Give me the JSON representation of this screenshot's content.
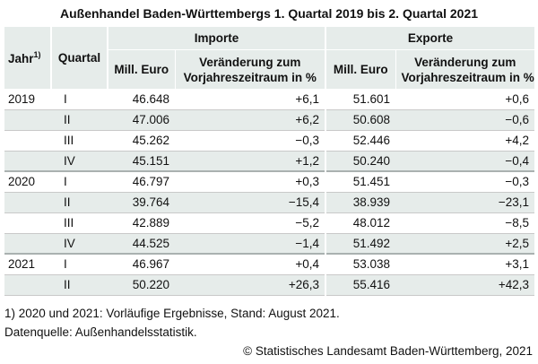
{
  "title": "Außenhandel Baden-Württembergs 1. Quartal 2019 bis 2. Quartal 2021",
  "header": {
    "jahr": "Jahr",
    "jahr_note": "1)",
    "quartal": "Quartal",
    "importe": "Importe",
    "exporte": "Exporte",
    "mill_euro": "Mill. Euro",
    "veraenderung_line1": "Veränderung zum",
    "veraenderung_line2": "Vorjahreszeitraum in %"
  },
  "rows": [
    {
      "jahr": "2019",
      "quartal": "I",
      "imp": "46.648",
      "imp_chg": "+6,1",
      "exp": "51.601",
      "exp_chg": "+0,6"
    },
    {
      "jahr": "",
      "quartal": "II",
      "imp": "47.006",
      "imp_chg": "+6,2",
      "exp": "50.608",
      "exp_chg": "−0,6"
    },
    {
      "jahr": "",
      "quartal": "III",
      "imp": "45.262",
      "imp_chg": "−0,3",
      "exp": "52.446",
      "exp_chg": "+4,2"
    },
    {
      "jahr": "",
      "quartal": "IV",
      "imp": "45.151",
      "imp_chg": "+1,2",
      "exp": "50.240",
      "exp_chg": "−0,4"
    },
    {
      "jahr": "2020",
      "quartal": "I",
      "imp": "46.797",
      "imp_chg": "+0,3",
      "exp": "51.451",
      "exp_chg": "−0,3"
    },
    {
      "jahr": "",
      "quartal": "II",
      "imp": "39.764",
      "imp_chg": "−15,4",
      "exp": "38.939",
      "exp_chg": "−23,1"
    },
    {
      "jahr": "",
      "quartal": "III",
      "imp": "42.889",
      "imp_chg": "−5,2",
      "exp": "48.012",
      "exp_chg": "−8,5"
    },
    {
      "jahr": "",
      "quartal": "IV",
      "imp": "44.525",
      "imp_chg": "−1,4",
      "exp": "51.492",
      "exp_chg": "+2,5"
    },
    {
      "jahr": "2021",
      "quartal": "I",
      "imp": "46.967",
      "imp_chg": "+0,4",
      "exp": "53.038",
      "exp_chg": "+3,1"
    },
    {
      "jahr": "",
      "quartal": "II",
      "imp": "50.220",
      "imp_chg": "+26,3",
      "exp": "55.416",
      "exp_chg": "+42,3"
    }
  ],
  "footnotes": {
    "note1": "1) 2020 und 2021: Vorläufige Ergebnisse, Stand: August 2021.",
    "source": "Datenquelle: Außenhandelsstatistik.",
    "copyright": "© Statistisches Landesamt Baden-Württemberg, 2021"
  }
}
